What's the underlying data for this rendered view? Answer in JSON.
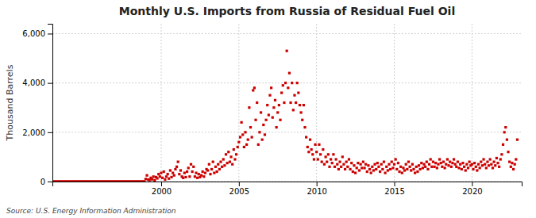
{
  "chart_data": {
    "type": "scatter",
    "title": "Monthly U.S. Imports from Russia of Residual Fuel Oil",
    "ylabel": "Thousand Barrels",
    "source": "Source: U.S. Energy Information Administration",
    "color": "#cc0000",
    "marker": "square",
    "grid": true,
    "xlim": [
      1993.0,
      2023.2
    ],
    "xticks": [
      2000,
      2005,
      2010,
      2015,
      2020
    ],
    "ylim": [
      0,
      6400
    ],
    "yticks": [
      0,
      {
        "value": 2000,
        "label": "2,000"
      },
      {
        "value": 4000,
        "label": "4,000"
      },
      {
        "value": 6000,
        "label": "6,000"
      }
    ],
    "x": [
      1993,
      1993.0833333333333,
      1993.1666666666667,
      1993.25,
      1993.3333333333333,
      1993.4166666666667,
      1993.5,
      1993.5833333333333,
      1993.6666666666667,
      1993.75,
      1993.8333333333333,
      1993.9166666666667,
      1994,
      1994.0833333333333,
      1994.1666666666667,
      1994.25,
      1994.3333333333333,
      1994.4166666666667,
      1994.5,
      1994.5833333333333,
      1994.6666666666667,
      1994.75,
      1994.8333333333333,
      1994.9166666666667,
      1995,
      1995.0833333333333,
      1995.1666666666667,
      1995.25,
      1995.3333333333333,
      1995.4166666666667,
      1995.5,
      1995.5833333333333,
      1995.6666666666667,
      1995.75,
      1995.8333333333333,
      1995.9166666666667,
      1996,
      1996.0833333333333,
      1996.1666666666667,
      1996.25,
      1996.3333333333333,
      1996.4166666666667,
      1996.5,
      1996.5833333333333,
      1996.6666666666667,
      1996.75,
      1996.8333333333333,
      1996.9166666666667,
      1997,
      1997.0833333333333,
      1997.1666666666667,
      1997.25,
      1997.3333333333333,
      1997.4166666666667,
      1997.5,
      1997.5833333333333,
      1997.6666666666667,
      1997.75,
      1997.8333333333333,
      1997.9166666666667,
      1998,
      1998.0833333333333,
      1998.1666666666667,
      1998.25,
      1998.3333333333333,
      1998.4166666666667,
      1998.5,
      1998.5833333333333,
      1998.6666666666667,
      1998.75,
      1998.8333333333333,
      1998.9166666666667,
      1999,
      1999.0833333333333,
      1999.1666666666667,
      1999.25,
      1999.3333333333333,
      1999.4166666666667,
      1999.5,
      1999.5833333333333,
      1999.6666666666667,
      1999.75,
      1999.8333333333333,
      1999.9166666666667,
      2000,
      2000.0833333333333,
      2000.1666666666667,
      2000.25,
      2000.3333333333333,
      2000.4166666666667,
      2000.5,
      2000.5833333333333,
      2000.6666666666667,
      2000.75,
      2000.8333333333333,
      2000.9166666666667,
      2001,
      2001.0833333333333,
      2001.1666666666667,
      2001.25,
      2001.3333333333333,
      2001.4166666666667,
      2001.5,
      2001.5833333333333,
      2001.6666666666667,
      2001.75,
      2001.8333333333333,
      2001.9166666666667,
      2002,
      2002.0833333333333,
      2002.1666666666667,
      2002.25,
      2002.3333333333333,
      2002.4166666666667,
      2002.5,
      2002.5833333333333,
      2002.6666666666667,
      2002.75,
      2002.8333333333333,
      2002.9166666666667,
      2003,
      2003.0833333333333,
      2003.1666666666667,
      2003.25,
      2003.3333333333333,
      2003.4166666666667,
      2003.5,
      2003.5833333333333,
      2003.6666666666667,
      2003.75,
      2003.8333333333333,
      2003.9166666666667,
      2004,
      2004.0833333333333,
      2004.1666666666667,
      2004.25,
      2004.3333333333333,
      2004.4166666666667,
      2004.5,
      2004.5833333333333,
      2004.6666666666667,
      2004.75,
      2004.8333333333333,
      2004.9166666666667,
      2005,
      2005.0833333333333,
      2005.1666666666667,
      2005.25,
      2005.3333333333333,
      2005.4166666666667,
      2005.5,
      2005.5833333333333,
      2005.6666666666667,
      2005.75,
      2005.8333333333333,
      2005.9166666666667,
      2006,
      2006.0833333333333,
      2006.1666666666667,
      2006.25,
      2006.3333333333333,
      2006.4166666666667,
      2006.5,
      2006.5833333333333,
      2006.6666666666667,
      2006.75,
      2006.8333333333333,
      2006.9166666666667,
      2007,
      2007.0833333333333,
      2007.1666666666667,
      2007.25,
      2007.3333333333333,
      2007.4166666666667,
      2007.5,
      2007.5833333333333,
      2007.6666666666667,
      2007.75,
      2007.8333333333333,
      2007.9166666666667,
      2008,
      2008.0833333333333,
      2008.1666666666667,
      2008.25,
      2008.3333333333333,
      2008.4166666666667,
      2008.5,
      2008.5833333333333,
      2008.6666666666667,
      2008.75,
      2008.8333333333333,
      2008.9166666666667,
      2009,
      2009.0833333333333,
      2009.1666666666667,
      2009.25,
      2009.3333333333333,
      2009.4166666666667,
      2009.5,
      2009.5833333333333,
      2009.6666666666667,
      2009.75,
      2009.8333333333333,
      2009.9166666666667,
      2010,
      2010.0833333333333,
      2010.1666666666667,
      2010.25,
      2010.3333333333333,
      2010.4166666666667,
      2010.5,
      2010.5833333333333,
      2010.6666666666667,
      2010.75,
      2010.8333333333333,
      2010.9166666666667,
      2011,
      2011.0833333333333,
      2011.1666666666667,
      2011.25,
      2011.3333333333333,
      2011.4166666666667,
      2011.5,
      2011.5833333333333,
      2011.6666666666667,
      2011.75,
      2011.8333333333333,
      2011.9166666666667,
      2012,
      2012.0833333333333,
      2012.1666666666667,
      2012.25,
      2012.3333333333333,
      2012.4166666666667,
      2012.5,
      2012.5833333333333,
      2012.6666666666667,
      2012.75,
      2012.8333333333333,
      2012.9166666666667,
      2013,
      2013.0833333333333,
      2013.1666666666667,
      2013.25,
      2013.3333333333333,
      2013.4166666666667,
      2013.5,
      2013.5833333333333,
      2013.6666666666667,
      2013.75,
      2013.8333333333333,
      2013.9166666666667,
      2014,
      2014.0833333333333,
      2014.1666666666667,
      2014.25,
      2014.3333333333333,
      2014.4166666666667,
      2014.5,
      2014.5833333333333,
      2014.6666666666667,
      2014.75,
      2014.8333333333333,
      2014.9166666666667,
      2015,
      2015.0833333333333,
      2015.1666666666667,
      2015.25,
      2015.3333333333333,
      2015.4166666666667,
      2015.5,
      2015.5833333333333,
      2015.6666666666667,
      2015.75,
      2015.8333333333333,
      2015.9166666666667,
      2016,
      2016.0833333333333,
      2016.1666666666667,
      2016.25,
      2016.3333333333333,
      2016.4166666666667,
      2016.5,
      2016.5833333333333,
      2016.6666666666667,
      2016.75,
      2016.8333333333333,
      2016.9166666666667,
      2017,
      2017.0833333333333,
      2017.1666666666667,
      2017.25,
      2017.3333333333333,
      2017.4166666666667,
      2017.5,
      2017.5833333333333,
      2017.6666666666667,
      2017.75,
      2017.8333333333333,
      2017.9166666666667,
      2018,
      2018.0833333333333,
      2018.1666666666667,
      2018.25,
      2018.3333333333333,
      2018.4166666666667,
      2018.5,
      2018.5833333333333,
      2018.6666666666667,
      2018.75,
      2018.8333333333333,
      2018.9166666666667,
      2019,
      2019.0833333333333,
      2019.1666666666667,
      2019.25,
      2019.3333333333333,
      2019.4166666666667,
      2019.5,
      2019.5833333333333,
      2019.6666666666667,
      2019.75,
      2019.8333333333333,
      2019.9166666666667,
      2020,
      2020.0833333333333,
      2020.1666666666667,
      2020.25,
      2020.3333333333333,
      2020.4166666666667,
      2020.5,
      2020.5833333333333,
      2020.6666666666667,
      2020.75,
      2020.8333333333333,
      2020.9166666666667,
      2021,
      2021.0833333333333,
      2021.1666666666667,
      2021.25,
      2021.3333333333333,
      2021.4166666666667,
      2021.5,
      2021.5833333333333,
      2021.6666666666667,
      2021.75,
      2021.8333333333333,
      2021.9166666666667,
      2022,
      2022.0833333333333,
      2022.1666666666667,
      2022.25,
      2022.3333333333333,
      2022.4166666666667,
      2022.5,
      2022.5833333333333,
      2022.6666666666667,
      2022.75,
      2022.8333333333333,
      2022.9166666666667
    ],
    "values": [
      0,
      0,
      0,
      0,
      0,
      0,
      0,
      0,
      0,
      0,
      0,
      0,
      0,
      0,
      0,
      0,
      0,
      0,
      0,
      0,
      0,
      0,
      0,
      0,
      0,
      0,
      0,
      0,
      0,
      0,
      0,
      0,
      0,
      0,
      0,
      0,
      0,
      0,
      0,
      0,
      0,
      0,
      0,
      0,
      0,
      0,
      0,
      0,
      0,
      0,
      0,
      0,
      0,
      0,
      0,
      0,
      0,
      0,
      0,
      0,
      0,
      0,
      0,
      0,
      0,
      0,
      0,
      0,
      0,
      0,
      0,
      0,
      100,
      250,
      80,
      60,
      150,
      90,
      200,
      50,
      180,
      130,
      300,
      200,
      350,
      150,
      400,
      80,
      200,
      300,
      120,
      450,
      180,
      350,
      250,
      500,
      600,
      800,
      300,
      450,
      200,
      150,
      350,
      180,
      400,
      550,
      200,
      700,
      400,
      600,
      200,
      350,
      150,
      300,
      180,
      250,
      400,
      200,
      350,
      500,
      450,
      700,
      300,
      500,
      800,
      350,
      600,
      400,
      700,
      500,
      800,
      600,
      900,
      650,
      1100,
      750,
      1200,
      800,
      1000,
      700,
      1300,
      900,
      1100,
      1400,
      1600,
      1800,
      2400,
      1900,
      1400,
      2000,
      1500,
      1700,
      3000,
      2200,
      1800,
      3700,
      3800,
      2500,
      3200,
      1500,
      2000,
      2800,
      1700,
      2300,
      1900,
      2500,
      3100,
      2700,
      3500,
      3800,
      2600,
      3000,
      3300,
      2200,
      2800,
      3100,
      2500,
      3600,
      3900,
      3200,
      4000,
      5300,
      3800,
      4400,
      3200,
      4000,
      2900,
      3500,
      3200,
      4000,
      3600,
      3100,
      2800,
      2500,
      3100,
      2200,
      1800,
      1400,
      1200,
      1700,
      1300,
      1100,
      900,
      1500,
      1200,
      900,
      1500,
      1100,
      800,
      1300,
      700,
      1000,
      800,
      1100,
      600,
      900,
      750,
      1100,
      600,
      900,
      700,
      500,
      800,
      600,
      1000,
      700,
      500,
      800,
      600,
      900,
      500,
      750,
      400,
      650,
      350,
      550,
      750,
      450,
      700,
      550,
      800,
      550,
      700,
      400,
      650,
      500,
      350,
      600,
      450,
      700,
      500,
      750,
      600,
      400,
      700,
      500,
      800,
      350,
      600,
      450,
      700,
      500,
      800,
      550,
      700,
      900,
      500,
      750,
      400,
      600,
      350,
      550,
      450,
      700,
      500,
      800,
      600,
      450,
      700,
      500,
      350,
      600,
      400,
      650,
      500,
      750,
      550,
      700,
      600,
      800,
      500,
      700,
      900,
      600,
      800,
      600,
      750,
      550,
      700,
      900,
      750,
      600,
      800,
      550,
      700,
      900,
      650,
      800,
      600,
      750,
      900,
      700,
      600,
      800,
      550,
      700,
      500,
      750,
      600,
      450,
      700,
      550,
      800,
      650,
      700,
      500,
      750,
      600,
      450,
      700,
      550,
      800,
      650,
      900,
      700,
      550,
      800,
      650,
      900,
      700,
      550,
      800,
      650,
      950,
      750,
      600,
      900,
      1100,
      1500,
      2000,
      2200,
      1700,
      1200,
      800,
      600,
      750,
      500,
      700,
      900,
      1700
    ]
  }
}
